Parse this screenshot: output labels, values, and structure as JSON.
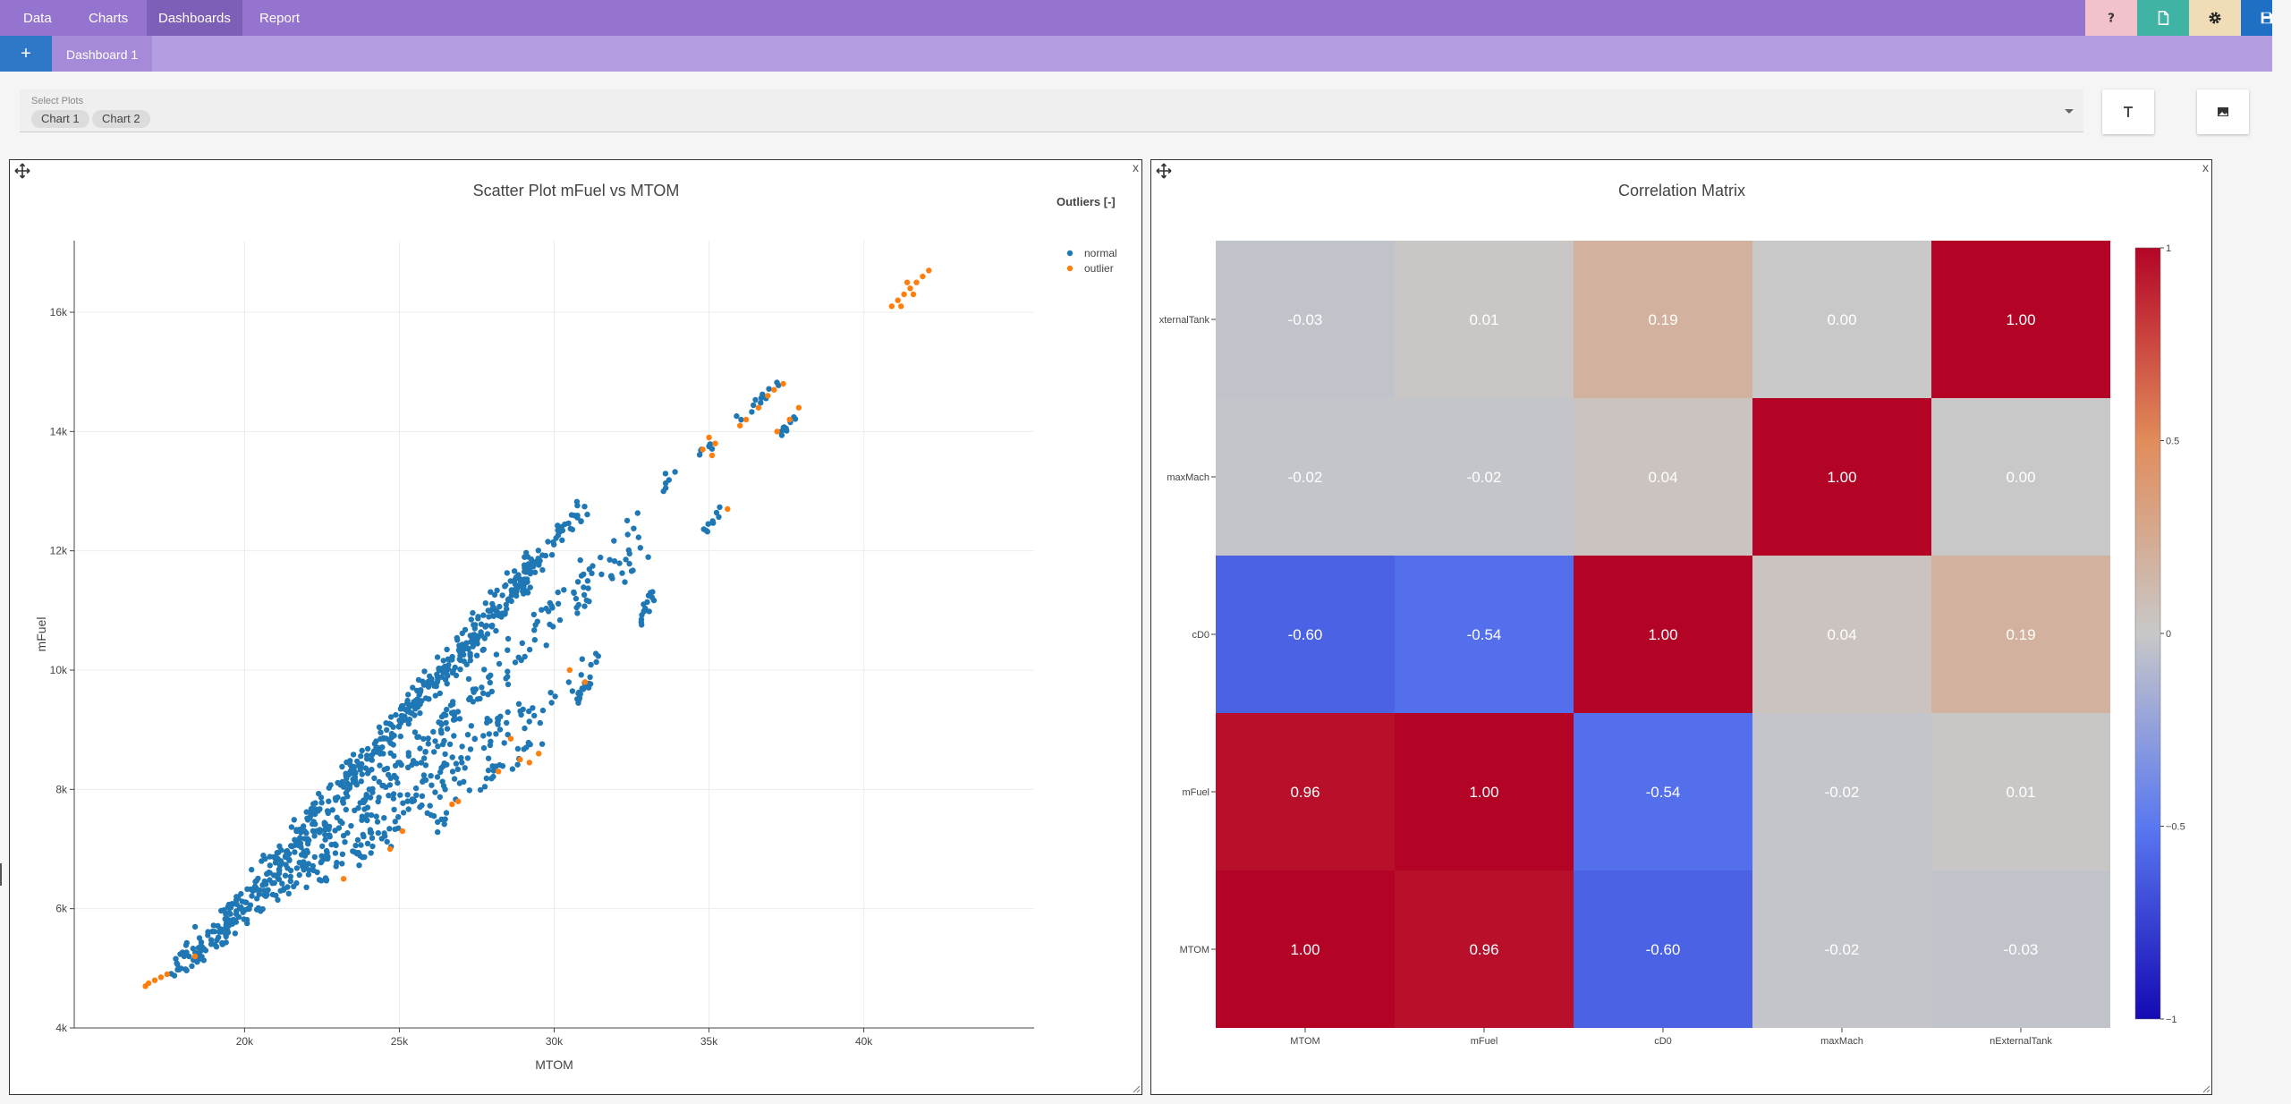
{
  "topnav": {
    "tabs": [
      {
        "label": "Data",
        "active": false
      },
      {
        "label": "Charts",
        "active": false
      },
      {
        "label": "Dashboards",
        "active": true
      },
      {
        "label": "Report",
        "active": false
      }
    ],
    "buttons": [
      {
        "icon": "help-icon",
        "color": "#f3c1cc"
      },
      {
        "icon": "file-icon",
        "color": "#3fb3a4"
      },
      {
        "icon": "gear-icon",
        "color": "#f1dcb8"
      },
      {
        "icon": "save-icon",
        "color": "#1f6fc5"
      }
    ]
  },
  "dashboard_tabs": {
    "add_label": "+",
    "tabs": [
      "Dashboard 1"
    ]
  },
  "select_plots": {
    "label": "Select Plots",
    "selected": [
      "Chart 1",
      "Chart 2"
    ]
  },
  "side_buttons": [
    {
      "icon": "text-icon",
      "glyph": "T"
    },
    {
      "icon": "image-icon"
    }
  ],
  "panels": {
    "close_label": "x"
  },
  "chart_data": [
    {
      "type": "scatter",
      "title": "Scatter Plot mFuel vs MTOM",
      "xlabel": "MTOM",
      "ylabel": "mFuel",
      "xlim": [
        14500,
        45500
      ],
      "ylim": [
        4000,
        17200
      ],
      "xticks": [
        20000,
        25000,
        30000,
        35000,
        40000
      ],
      "xtick_labels": [
        "20k",
        "25k",
        "30k",
        "35k",
        "40k"
      ],
      "yticks": [
        4000,
        6000,
        8000,
        10000,
        12000,
        14000,
        16000
      ],
      "ytick_labels": [
        "4k",
        "6k",
        "8k",
        "10k",
        "12k",
        "14k",
        "16k"
      ],
      "grid": true,
      "legend": {
        "title": "Outliers [-]",
        "position": "top-right"
      },
      "series": [
        {
          "name": "normal",
          "color": "#1f77b4",
          "clusters": [
            {
              "x": [
                18000,
                29500
              ],
              "y": [
                5000,
                11800
              ],
              "n": 380,
              "spread": 180
            },
            {
              "x": [
                19000,
                31000
              ],
              "y": [
                5300,
                12800
              ],
              "n": 220,
              "spread": 150
            },
            {
              "x": [
                20000,
                33000
              ],
              "y": [
                5800,
                12200
              ],
              "n": 160,
              "spread": 150
            },
            {
              "x": [
                21000,
                34000
              ],
              "y": [
                6200,
                13300
              ],
              "n": 90,
              "spread": 130
            },
            {
              "x": [
                22000,
                29000
              ],
              "y": [
                6400,
                9500
              ],
              "n": 90,
              "spread": 140
            },
            {
              "x": [
                23500,
                31500
              ],
              "y": [
                6800,
                10200
              ],
              "n": 60,
              "spread": 130
            },
            {
              "x": [
                26000,
                29800
              ],
              "y": [
                7400,
                8900
              ],
              "n": 30,
              "spread": 120
            },
            {
              "x": [
                30700,
                31200
              ],
              "y": [
                9500,
                9800
              ],
              "n": 15,
              "spread": 70
            },
            {
              "x": [
                32800,
                33200
              ],
              "y": [
                10900,
                11300
              ],
              "n": 15,
              "spread": 70
            },
            {
              "x": [
                34800,
                35400
              ],
              "y": [
                12300,
                12700
              ],
              "n": 10,
              "spread": 60
            },
            {
              "x": [
                34600,
                35100
              ],
              "y": [
                13600,
                13800
              ],
              "n": 8,
              "spread": 60
            },
            {
              "x": [
                35800,
                37300
              ],
              "y": [
                14200,
                14800
              ],
              "n": 12,
              "spread": 70
            },
            {
              "x": [
                37100,
                37800
              ],
              "y": [
                13800,
                14300
              ],
              "n": 10,
              "spread": 60
            },
            {
              "x": [
                17500,
                18500
              ],
              "y": [
                4900,
                5200
              ],
              "n": 10,
              "spread": 80
            }
          ]
        },
        {
          "name": "outlier",
          "color": "#ff7f0e",
          "points": [
            [
              16800,
              4700
            ],
            [
              16900,
              4750
            ],
            [
              17100,
              4800
            ],
            [
              17300,
              4850
            ],
            [
              17500,
              4900
            ],
            [
              18400,
              5200
            ],
            [
              23200,
              6500
            ],
            [
              24700,
              7000
            ],
            [
              25100,
              7300
            ],
            [
              26900,
              7800
            ],
            [
              26700,
              7750
            ],
            [
              28200,
              8300
            ],
            [
              28600,
              8850
            ],
            [
              28900,
              8500
            ],
            [
              29200,
              8450
            ],
            [
              29500,
              8600
            ],
            [
              30500,
              10000
            ],
            [
              31000,
              9800
            ],
            [
              35000,
              13900
            ],
            [
              35200,
              13800
            ],
            [
              35600,
              12700
            ],
            [
              34800,
              13700
            ],
            [
              35100,
              13600
            ],
            [
              36000,
              14100
            ],
            [
              36200,
              14200
            ],
            [
              36600,
              14400
            ],
            [
              36900,
              14600
            ],
            [
              37100,
              14700
            ],
            [
              37400,
              14800
            ],
            [
              37200,
              14000
            ],
            [
              37600,
              14200
            ],
            [
              37900,
              14400
            ],
            [
              40900,
              16100
            ],
            [
              41100,
              16200
            ],
            [
              41300,
              16300
            ],
            [
              41500,
              16400
            ],
            [
              41200,
              16100
            ],
            [
              41700,
              16500
            ],
            [
              41900,
              16600
            ],
            [
              42100,
              16700
            ],
            [
              41600,
              16300
            ],
            [
              41400,
              16500
            ]
          ]
        }
      ]
    },
    {
      "type": "heatmap",
      "title": "Correlation Matrix",
      "x_labels": [
        "MTOM",
        "mFuel",
        "cD0",
        "maxMach",
        "nExternalTank"
      ],
      "y_labels_top_to_bottom": [
        "nExternalTank",
        "maxMach",
        "cD0",
        "mFuel",
        "MTOM"
      ],
      "y_labels_display": [
        "xternalTank",
        "maxMach",
        "cD0",
        "mFuel",
        "MTOM"
      ],
      "values_top_to_bottom": [
        [
          -0.03,
          0.01,
          0.19,
          0.0,
          1.0
        ],
        [
          -0.02,
          -0.02,
          0.04,
          1.0,
          0.0
        ],
        [
          -0.6,
          -0.54,
          1.0,
          0.04,
          0.19
        ],
        [
          0.96,
          1.0,
          -0.54,
          -0.02,
          0.01
        ],
        [
          1.0,
          0.96,
          -0.6,
          -0.02,
          -0.03
        ]
      ],
      "colorbar": {
        "min": -1,
        "max": 1,
        "ticks": [
          1,
          0.5,
          0,
          -0.5,
          -1
        ],
        "tick_labels": [
          "1",
          "0.5",
          "0",
          "−0.5",
          "−1"
        ]
      },
      "colorscale": "coolwarm"
    }
  ]
}
